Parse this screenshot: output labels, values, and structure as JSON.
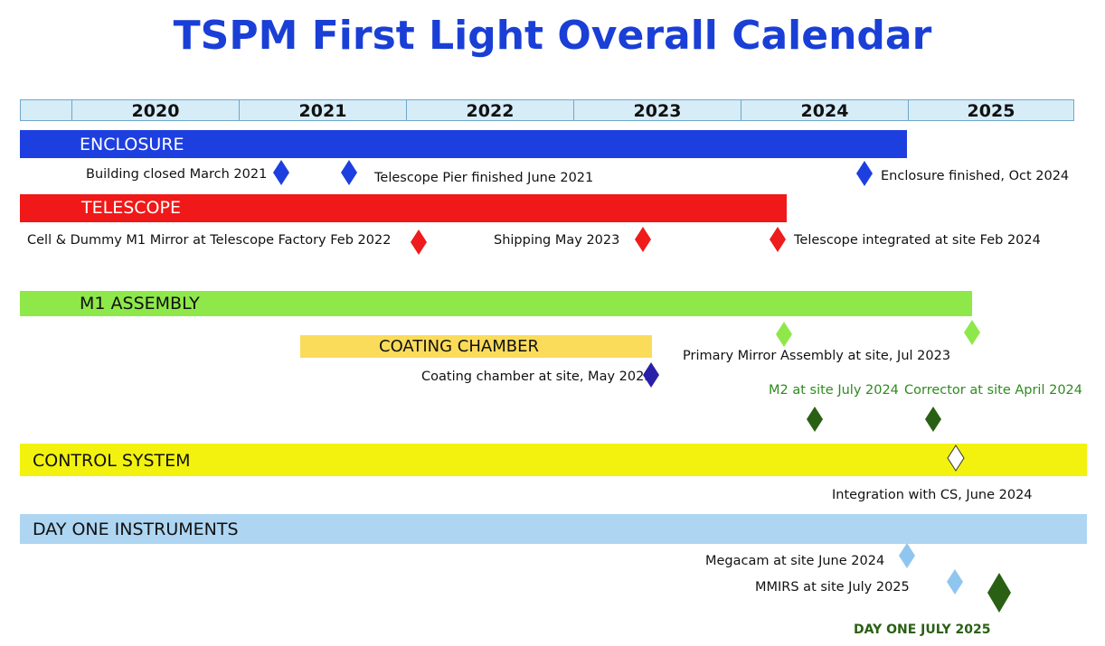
{
  "title": "TSPM First Light Overall Calendar",
  "years": [
    "2020",
    "2021",
    "2022",
    "2023",
    "2024",
    "2025"
  ],
  "bars": {
    "enclosure": "ENCLOSURE",
    "telescope": "TELESCOPE",
    "m1_assembly": "M1 ASSEMBLY",
    "coating_chamber": "COATING CHAMBER",
    "control_system": "CONTROL SYSTEM",
    "day_one_instruments": "DAY ONE INSTRUMENTS"
  },
  "milestones": {
    "building_closed": "Building closed March 2021",
    "pier_finished": "Telescope Pier finished  June 2021",
    "enclosure_finished": "Enclosure finished, Oct 2024",
    "cell_dummy": "Cell & Dummy M1 Mirror at Telescope Factory  Feb 2022",
    "shipping": "Shipping  May 2023",
    "telescope_integrated": "Telescope integrated at site Feb 2024",
    "primary_mirror": "Primary Mirror Assembly at site, Jul 2023",
    "coating_at_site": "Coating chamber at site, May 2023",
    "m2_at_site": "M2 at site July 2024",
    "corrector_at_site": "Corrector at site April 2024",
    "integration_cs": "Integration with CS, June 2024",
    "megacam": "Megacam at site June 2024",
    "mmirs": "MMIRS at site July 2025",
    "day_one": "DAY ONE JULY 2025"
  },
  "colors": {
    "title": "#1a3fd6",
    "enclosure": "#1e3fe0",
    "telescope": "#f01818",
    "m1_assembly": "#8ee84a",
    "coating_chamber": "#fbdc5a",
    "control_system": "#f2f20e",
    "day_one_instruments": "#aed6f3",
    "diamond_blue": "#1d3fe0",
    "diamond_red": "#ee1c1c",
    "diamond_light_green": "#8ee84a",
    "diamond_dark_blue": "#2a1fa8",
    "diamond_dark_green": "#2a6014",
    "diamond_light_blue": "#8fc6ef"
  }
}
